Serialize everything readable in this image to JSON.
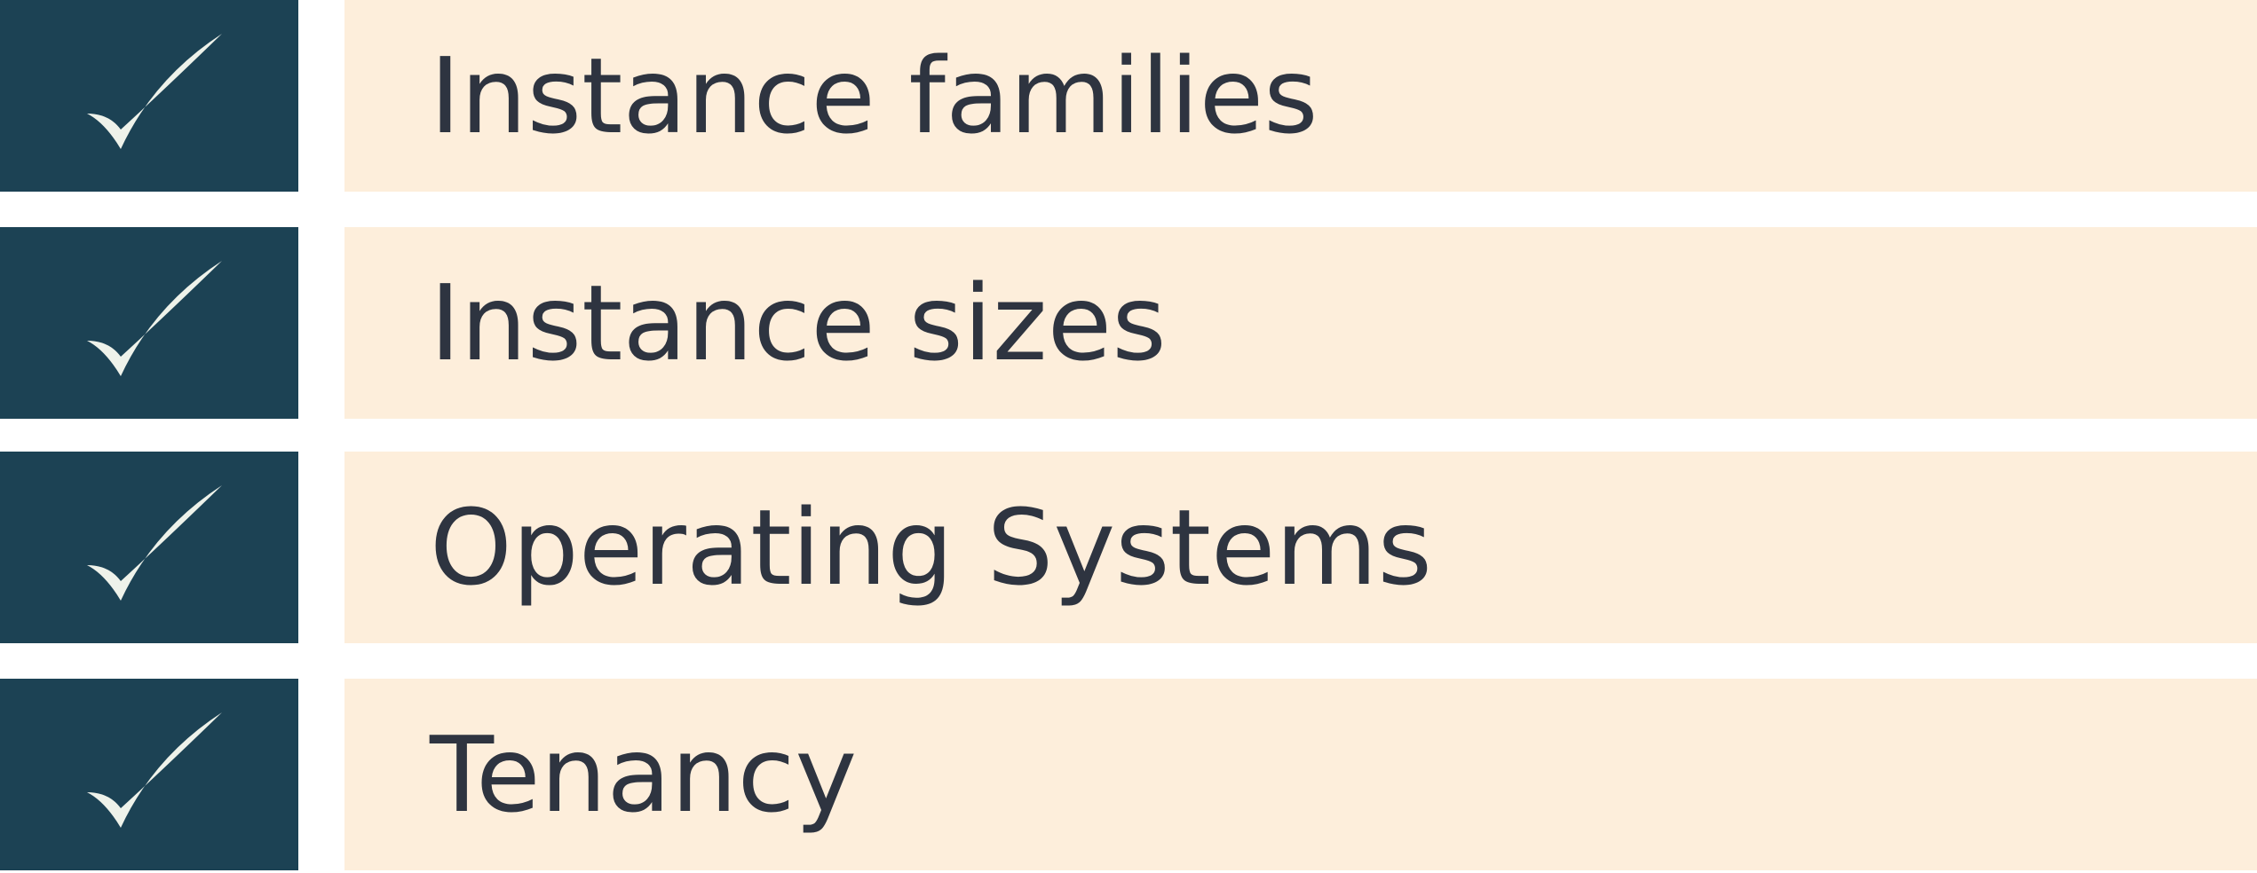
{
  "colors": {
    "check_box": "#1c4254",
    "check_mark": "#eef2ea",
    "label_bar": "#fdeedb",
    "label_text": "#2e3440"
  },
  "items": [
    {
      "icon": "check-icon",
      "label": "Instance families"
    },
    {
      "icon": "check-icon",
      "label": "Instance sizes"
    },
    {
      "icon": "check-icon",
      "label": "Operating Systems"
    },
    {
      "icon": "check-icon",
      "label": "Tenancy"
    }
  ]
}
